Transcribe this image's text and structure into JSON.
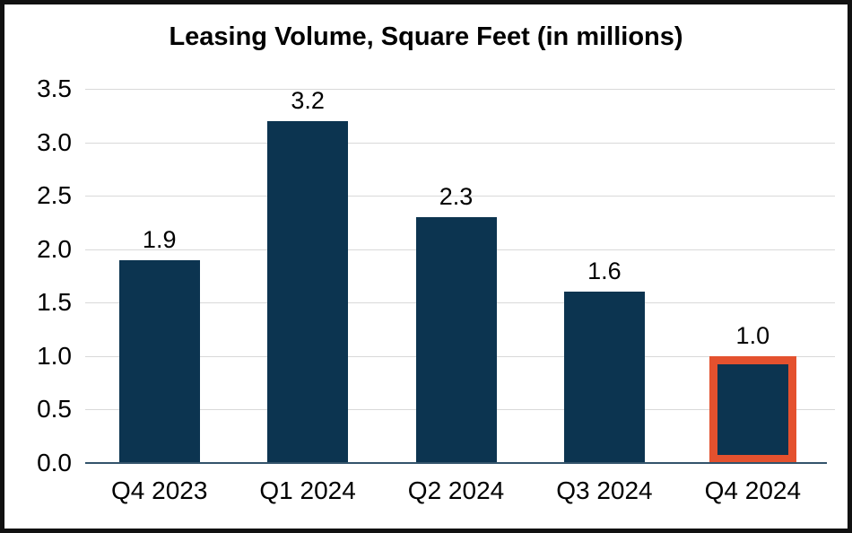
{
  "colors": {
    "bar": "#0C3450",
    "highlight_border": "#E4512E",
    "gridline": "#D9D9D9",
    "axis_line": "#33536B",
    "text": "#000000",
    "frame_border": "#111111"
  },
  "chart_data": {
    "type": "bar",
    "title": "Leasing Volume, Square Feet (in millions)",
    "categories": [
      "Q4 2023",
      "Q1 2024",
      "Q2 2024",
      "Q3 2024",
      "Q4 2024"
    ],
    "values": [
      1.9,
      3.2,
      2.3,
      1.6,
      1.0
    ],
    "data_labels": [
      "1.9",
      "3.2",
      "2.3",
      "1.6",
      "1.0"
    ],
    "highlight_index": 4,
    "highlighted_category": "Q4 2024",
    "xlabel": "",
    "ylabel": "",
    "ylim": [
      0,
      3.5
    ],
    "y_ticks": [
      0.0,
      0.5,
      1.0,
      1.5,
      2.0,
      2.5,
      3.0,
      3.5
    ],
    "y_tick_labels": [
      "0.0",
      "0.5",
      "1.0",
      "1.5",
      "2.0",
      "2.5",
      "3.0",
      "3.5"
    ],
    "grid": true,
    "legend_position": "none"
  }
}
